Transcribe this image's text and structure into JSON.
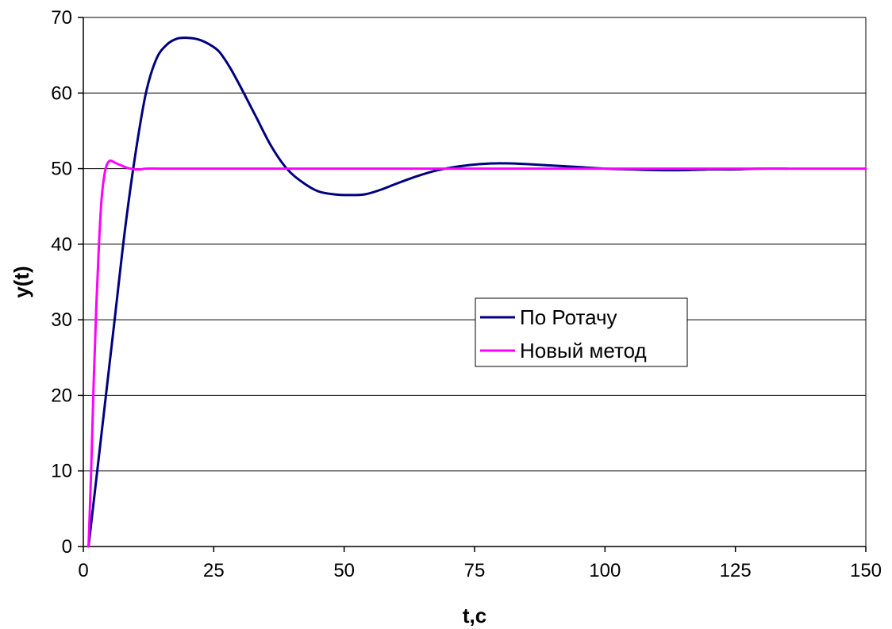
{
  "chart_data": {
    "type": "line",
    "xlabel": "t,c",
    "ylabel": "y(t)",
    "xlim": [
      0,
      150
    ],
    "ylim": [
      0,
      70
    ],
    "x_ticks": [
      0,
      25,
      50,
      75,
      100,
      125,
      150
    ],
    "y_ticks": [
      0,
      10,
      20,
      30,
      40,
      50,
      60,
      70
    ],
    "grid": "horizontal",
    "legend_position": "center-right",
    "series": [
      {
        "name": "По Ротачу",
        "color": "#000080",
        "x": [
          1,
          2,
          4,
          6,
          8,
          10,
          12,
          14,
          16,
          18,
          20,
          22,
          24,
          26,
          28,
          30,
          33,
          36,
          39,
          42,
          45,
          48,
          51,
          54,
          57,
          60,
          64,
          68,
          72,
          76,
          80,
          85,
          90,
          95,
          100,
          105,
          110,
          115,
          120,
          125,
          130,
          135
        ],
        "y": [
          0,
          6,
          18,
          30,
          42,
          52,
          60,
          64.5,
          66.4,
          67.2,
          67.3,
          67.1,
          66.5,
          65.5,
          63.5,
          61,
          57,
          53,
          50,
          48.2,
          47,
          46.6,
          46.5,
          46.6,
          47.2,
          48,
          49,
          49.8,
          50.3,
          50.6,
          50.7,
          50.6,
          50.4,
          50.2,
          50,
          49.9,
          49.8,
          49.8,
          49.9,
          49.9,
          50,
          50
        ]
      },
      {
        "name": "Новый метод",
        "color": "#FF00FF",
        "x": [
          1,
          1.5,
          2,
          2.5,
          3,
          3.5,
          4,
          4.5,
          5,
          5.5,
          6,
          7,
          8,
          9,
          10,
          11,
          12,
          15,
          20,
          30,
          50,
          100,
          150
        ],
        "y": [
          0,
          10,
          22,
          32,
          40,
          46,
          49,
          50.5,
          51,
          51,
          50.8,
          50.5,
          50.2,
          50,
          49.9,
          49.9,
          50,
          50,
          50,
          50,
          50,
          50,
          50
        ]
      }
    ]
  }
}
